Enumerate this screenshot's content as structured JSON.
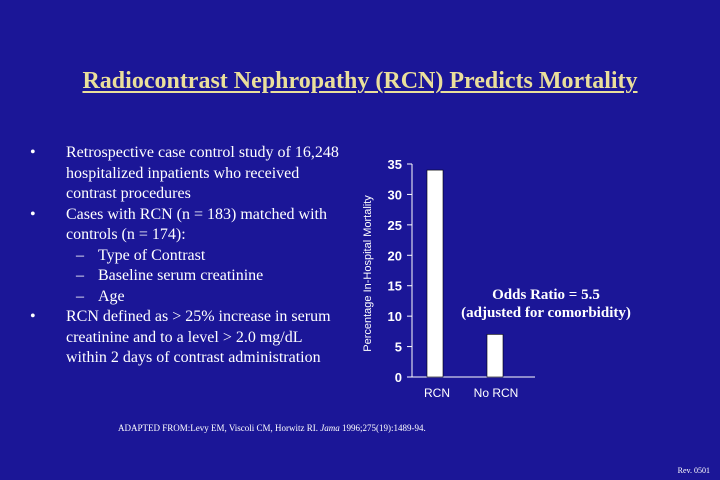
{
  "slide": {
    "title": "Radiocontrast Nephropathy (RCN) Predicts Mortality",
    "bullets": [
      {
        "text": "Retrospective case control study of 16,248 hospitalized inpatients who received contrast procedures",
        "sub": []
      },
      {
        "text": "Cases with RCN (n = 183) matched with controls (n = 174):",
        "sub": [
          "Type of Contrast",
          "Baseline serum creatinine",
          "Age"
        ]
      },
      {
        "text": "RCN defined as > 25% increase in serum creatinine and to a level > 2.0 mg/dL within 2 days of contrast administration",
        "sub": []
      }
    ],
    "bullet_symbol": "•",
    "dash_symbol": "–",
    "annotation_line1": "Odds Ratio = 5.5",
    "annotation_line2": "(adjusted for comorbidity)",
    "source_prefix": "ADAPTED FROM:Levy EM, Viscoli CM, Horwitz RI. ",
    "source_journal": "Jama",
    "source_suffix": " 1996;275(19):1489-94.",
    "footer": "Rev. 0501",
    "colors": {
      "background": "#1b1697",
      "title": "#eadf9b",
      "bar": "#ffffff",
      "text": "#ffffff"
    }
  },
  "chart_data": {
    "type": "bar",
    "categories": [
      "RCN",
      "No RCN"
    ],
    "values": [
      34,
      7
    ],
    "ylabel": "Percentage In-Hospital Mortality",
    "ylim": [
      0,
      35
    ],
    "yticks": [
      0,
      5,
      10,
      15,
      20,
      25,
      30,
      35
    ],
    "grid": false
  }
}
